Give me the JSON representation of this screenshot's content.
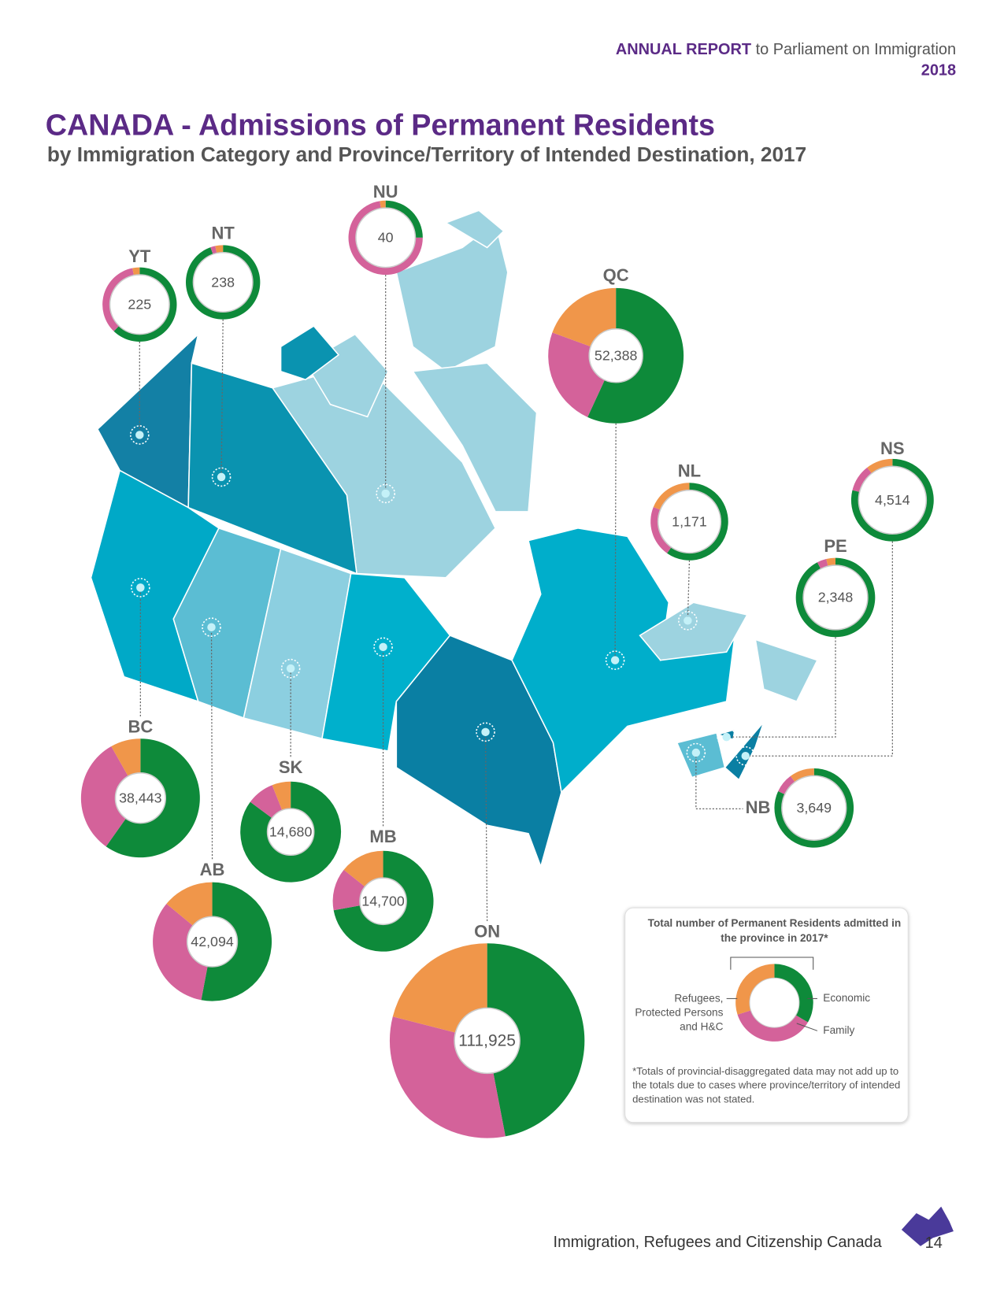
{
  "header": {
    "report": "ANNUAL REPORT",
    "report_rest": "to Parliament on Immigration",
    "year": "2018"
  },
  "chart_data": {
    "type": "donut",
    "title": "CANADA - Admissions of Permanent Residents",
    "subtitle": "by Immigration Category and Province/Territory of Intended Destination, 2017",
    "categories": [
      "YT",
      "NT",
      "NU",
      "QC",
      "NL",
      "NS",
      "PE",
      "NB",
      "BC",
      "SK",
      "MB",
      "AB",
      "ON"
    ],
    "totals": [
      225,
      238,
      40,
      {
        "value": 52388,
        "label": "52,388"
      },
      {
        "value": 1171,
        "label": "1,171"
      },
      {
        "value": 4514,
        "label": "4,514"
      },
      {
        "value": 2348,
        "label": "2,348"
      },
      {
        "value": 3649,
        "label": "3,649"
      },
      {
        "value": 38443,
        "label": "38,443"
      },
      {
        "value": 14680,
        "label": "14,680"
      },
      {
        "value": 14700,
        "label": "14,700"
      },
      {
        "value": 42094,
        "label": "42,094"
      },
      {
        "value": 111925,
        "label": "111,925"
      }
    ],
    "series": [
      {
        "name": "Economic",
        "color": "#0e8a3a",
        "values": [
          140,
          225,
          10,
          29800,
          700,
          3560,
          2170,
          2990,
          23000,
          12500,
          10600,
          22300,
          52600
        ]
      },
      {
        "name": "Family",
        "color": "#d4629a",
        "values": [
          78,
          5,
          29,
          12400,
          250,
          480,
          90,
          290,
          12300,
          1300,
          2000,
          13900,
          35800
        ]
      },
      {
        "name": "Refugees, Protected Persons and H&C",
        "color": "#f0964a",
        "values": [
          7,
          8,
          1,
          10188,
          221,
          474,
          88,
          369,
          3143,
          880,
          2100,
          5894,
          23525
        ]
      }
    ],
    "legend_title": "Total number of Permanent Residents admitted in the province in 2017*",
    "note": "*Totals of provincial-disaggregated data may not add up to the totals due to cases where province/territory of intended destination was not stated."
  },
  "footer": {
    "organization": "Immigration, Refugees and Citizenship Canada",
    "page": "14"
  }
}
